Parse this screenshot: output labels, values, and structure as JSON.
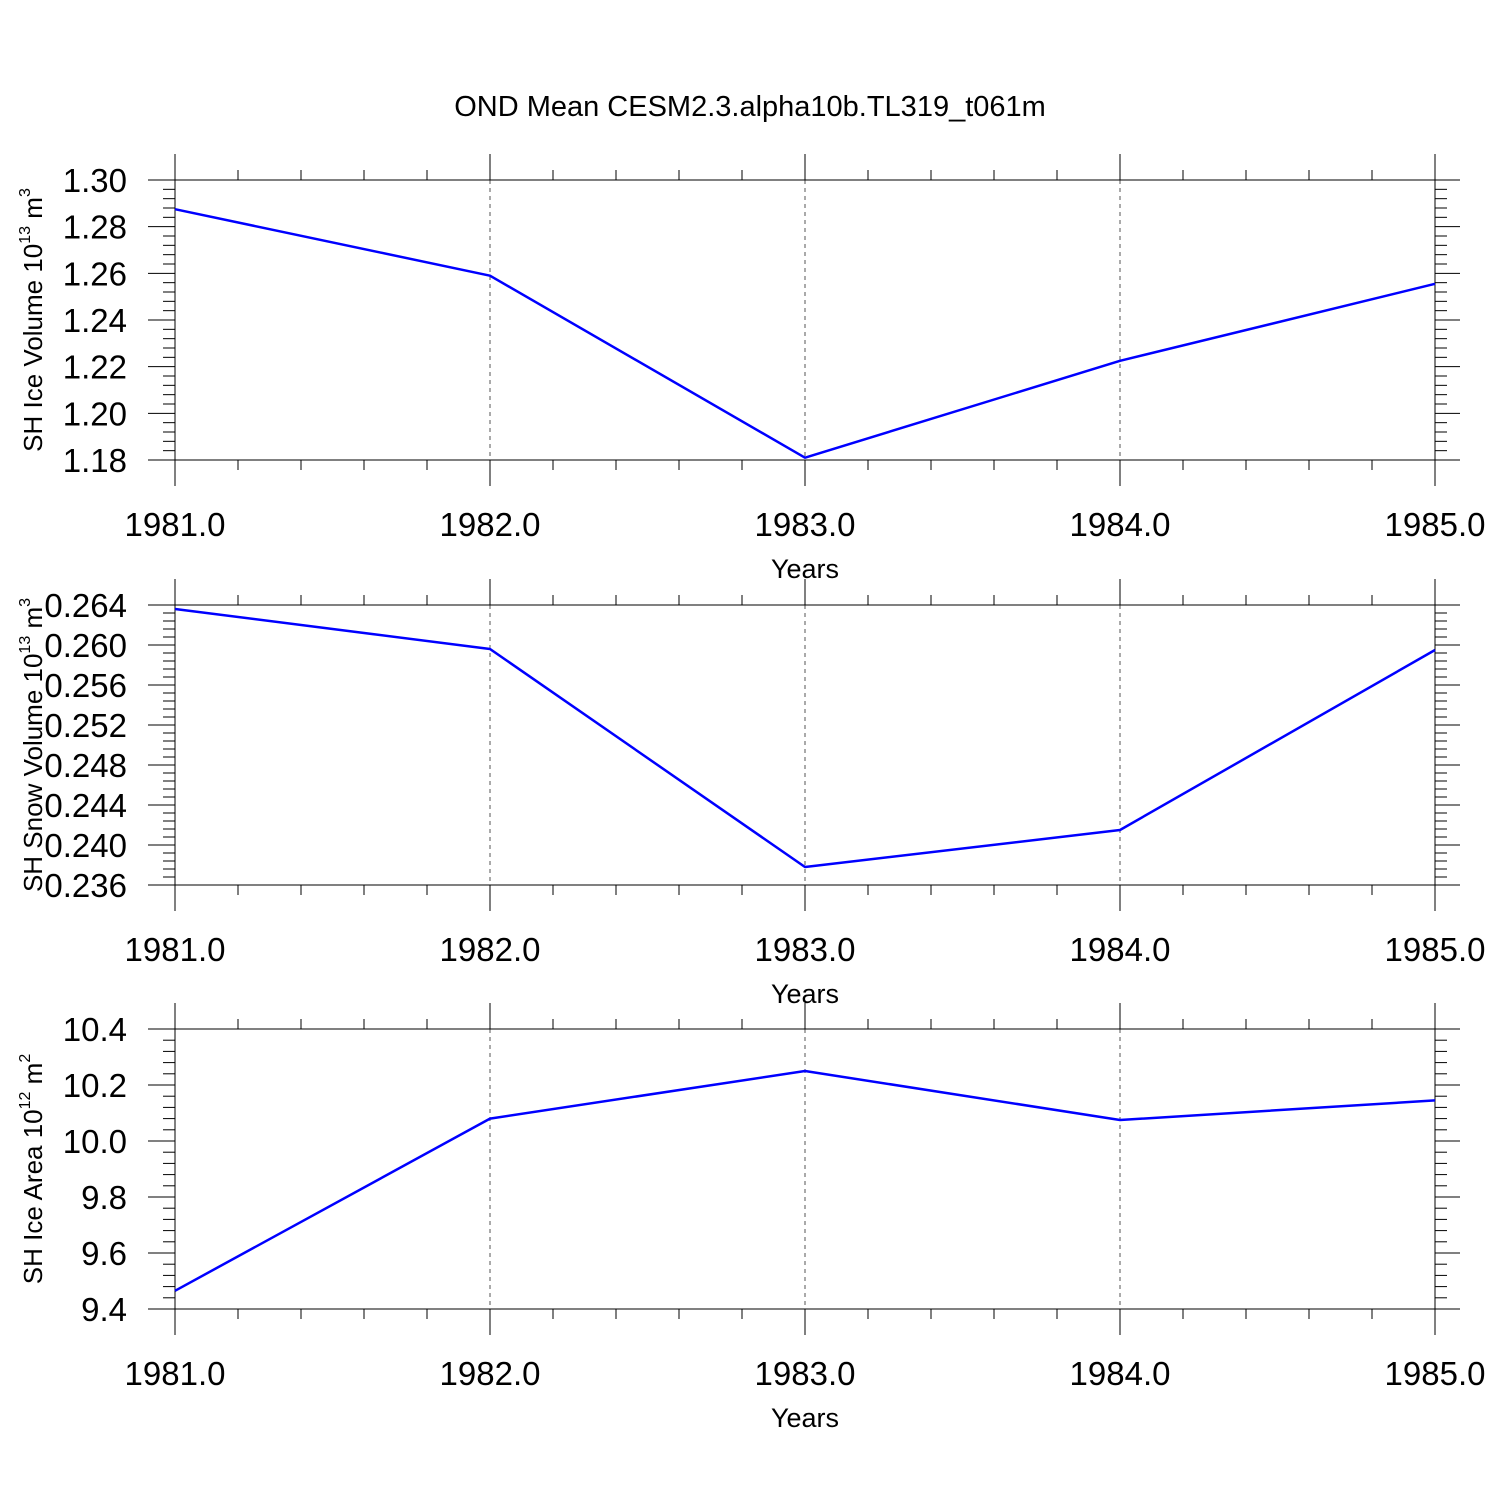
{
  "title": "OND Mean CESM2.3.alpha10b.TL319_t061m",
  "line_color": "#0000ff",
  "chart_data": [
    {
      "type": "line",
      "ylabel": {
        "text": "SH Ice Volume 10",
        "exp": "13",
        "unit": " m",
        "unit_exp": "3"
      },
      "xlabel": "Years",
      "x": [
        1981,
        1982,
        1983,
        1984,
        1985
      ],
      "values": [
        1.2875,
        1.259,
        1.181,
        1.2225,
        1.2555
      ],
      "xlim": [
        1981,
        1985
      ],
      "ylim": [
        1.18,
        1.3
      ],
      "xticks": [
        "1981.0",
        "1982.0",
        "1983.0",
        "1984.0",
        "1985.0"
      ],
      "yticks": [
        "1.18",
        "1.20",
        "1.22",
        "1.24",
        "1.26",
        "1.28",
        "1.30"
      ],
      "grid": "vertical dashed"
    },
    {
      "type": "line",
      "ylabel": {
        "text": "SH Snow Volume 10",
        "exp": "13",
        "unit": " m",
        "unit_exp": "3"
      },
      "xlabel": "Years",
      "x": [
        1981,
        1982,
        1983,
        1984,
        1985
      ],
      "values": [
        0.2636,
        0.2596,
        0.2378,
        0.2415,
        0.2595
      ],
      "xlim": [
        1981,
        1985
      ],
      "ylim": [
        0.236,
        0.264
      ],
      "xticks": [
        "1981.0",
        "1982.0",
        "1983.0",
        "1984.0",
        "1985.0"
      ],
      "yticks": [
        "0.236",
        "0.240",
        "0.244",
        "0.248",
        "0.252",
        "0.256",
        "0.260",
        "0.264"
      ],
      "grid": "vertical dashed"
    },
    {
      "type": "line",
      "ylabel": {
        "text": "SH Ice Area 10",
        "exp": "12",
        "unit": " m",
        "unit_exp": "2"
      },
      "xlabel": "Years",
      "x": [
        1981,
        1982,
        1983,
        1984,
        1985
      ],
      "values": [
        9.465,
        10.08,
        10.25,
        10.075,
        10.145
      ],
      "xlim": [
        1981,
        1985
      ],
      "ylim": [
        9.4,
        10.4
      ],
      "xticks": [
        "1981.0",
        "1982.0",
        "1983.0",
        "1984.0",
        "1985.0"
      ],
      "yticks": [
        "9.4",
        "9.6",
        "9.8",
        "10.0",
        "10.2",
        "10.4"
      ],
      "grid": "vertical dashed"
    }
  ]
}
